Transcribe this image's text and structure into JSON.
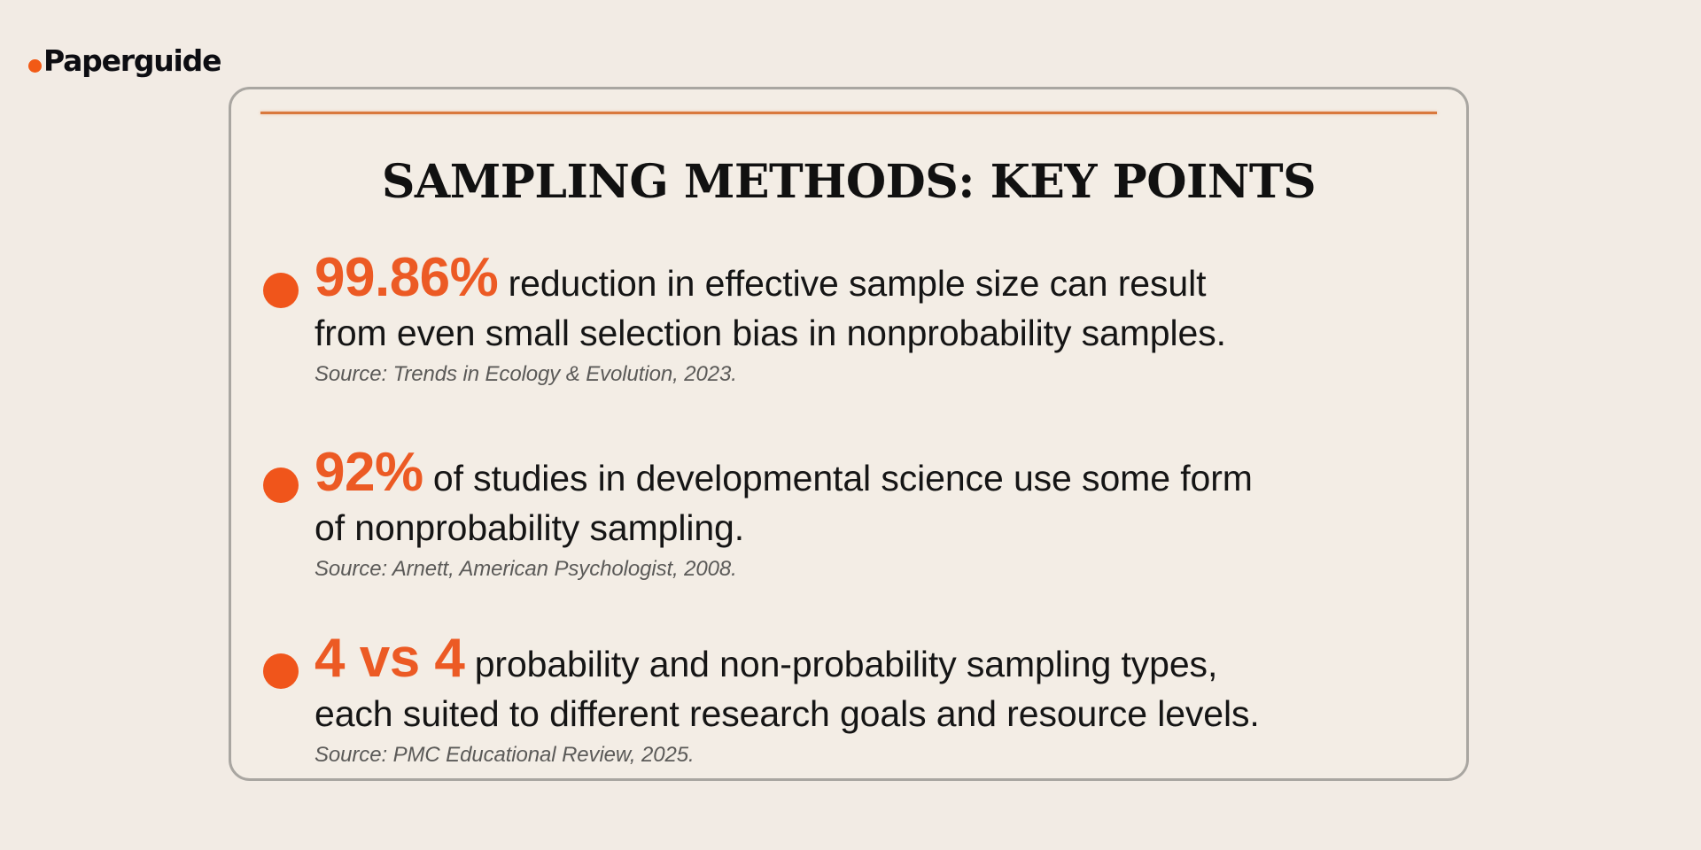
{
  "brand": {
    "name": "Paperguide",
    "dot_color": "#f25a15"
  },
  "card": {
    "title": "SAMPLING METHODS: KEY POINTS",
    "accent_color": "#ec5a24",
    "points": [
      {
        "stat": "99.86%",
        "line1": "reduction in effective sample size can result",
        "line2": "from even small selection bias in nonprobability samples.",
        "source": "Source: Trends in Ecology & Evolution, 2023."
      },
      {
        "stat": "92%",
        "line1": "of studies in developmental science use some form",
        "line2": "of nonprobability sampling.",
        "source": "Source: Arnett, American Psychologist, 2008."
      },
      {
        "stat": "4 vs 4",
        "line1": "probability and non-probability sampling types,",
        "line2": "each  suited to different research goals and resource levels.",
        "source": "Source: PMC Educational Review, 2025."
      }
    ]
  }
}
